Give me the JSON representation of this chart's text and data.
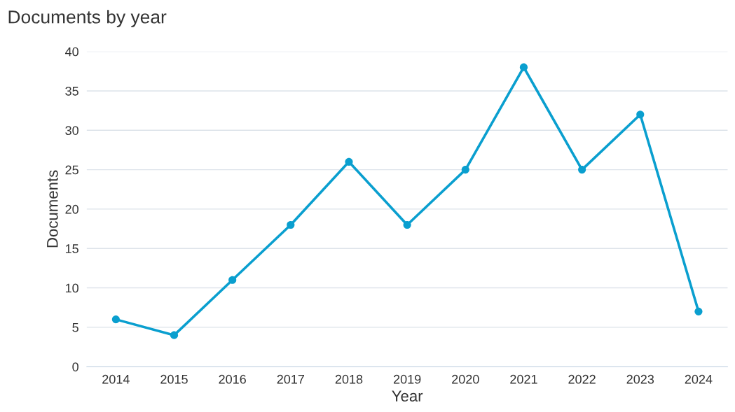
{
  "chart_data": {
    "type": "line",
    "title": "Documents by year",
    "xlabel": "Year",
    "ylabel": "Documents",
    "categories": [
      "2014",
      "2015",
      "2016",
      "2017",
      "2018",
      "2019",
      "2020",
      "2021",
      "2022",
      "2023",
      "2024"
    ],
    "series": [
      {
        "color": "#0a9fcf",
        "values": [
          6,
          4,
          11,
          18,
          26,
          18,
          25,
          38,
          25,
          32,
          7
        ]
      }
    ],
    "ylim": [
      0,
      40
    ],
    "yticks": [
      0,
      5,
      10,
      15,
      20,
      25,
      30,
      35,
      40
    ],
    "grid": "y",
    "marker": "circle",
    "line_style": "solid",
    "legend": false
  }
}
